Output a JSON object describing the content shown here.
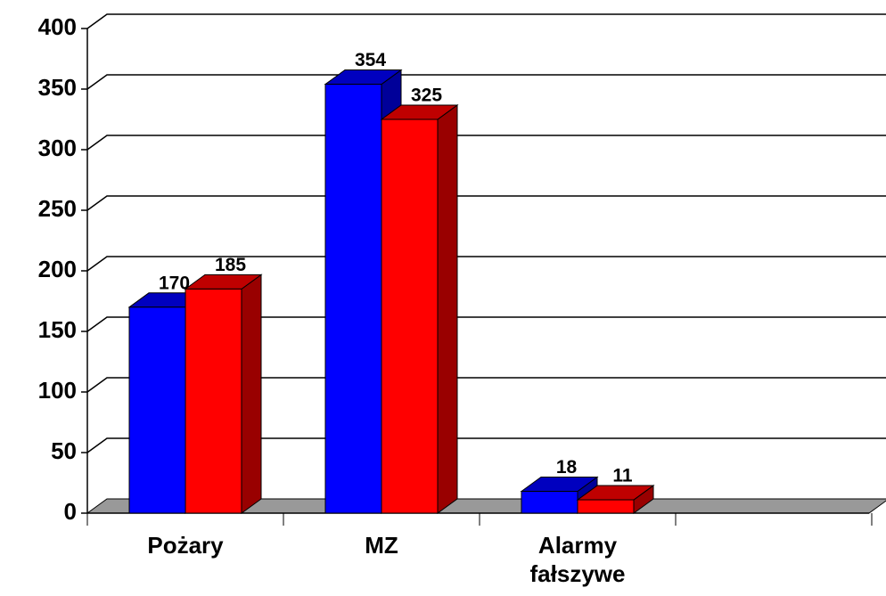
{
  "chart_data": {
    "type": "bar3d",
    "categories": [
      "Pożary",
      "MZ",
      "Alarmy fałszywe",
      null
    ],
    "series": [
      {
        "color": "#0000ff",
        "values": [
          170,
          354,
          18,
          null
        ]
      },
      {
        "color": "#ff0000",
        "values": [
          185,
          325,
          11,
          null
        ]
      }
    ],
    "ylim": [
      0,
      400
    ],
    "yticks": [
      0,
      50,
      100,
      150,
      200,
      250,
      300,
      350,
      400
    ],
    "grid": true
  }
}
